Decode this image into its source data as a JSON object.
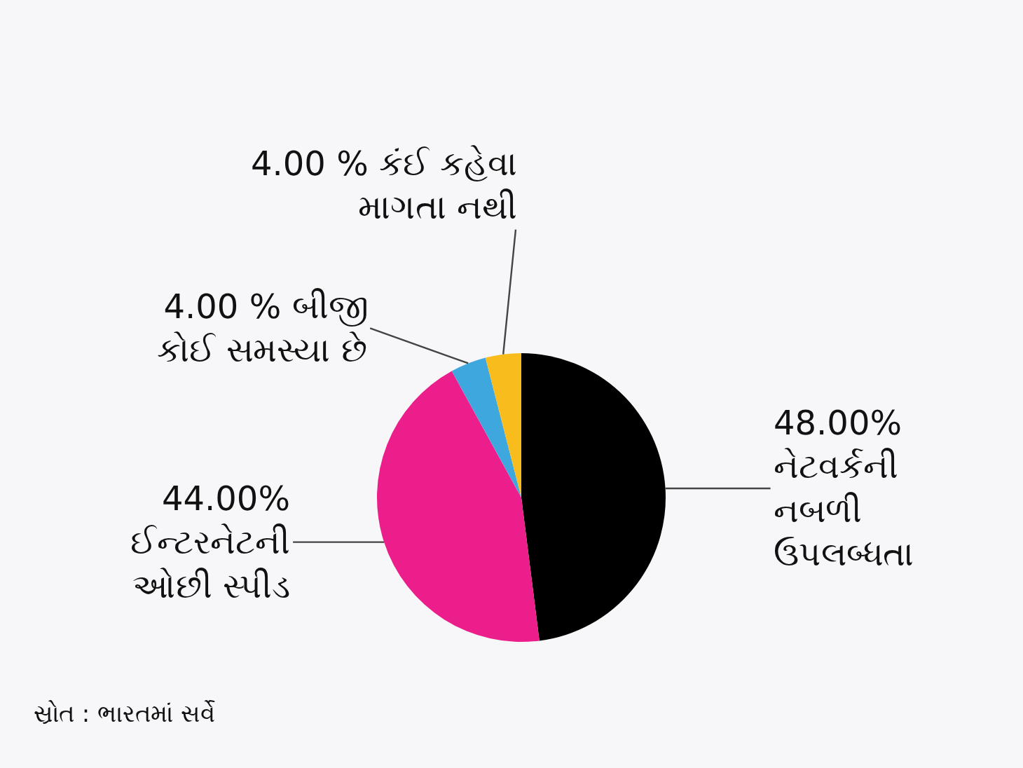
{
  "chart_data": {
    "type": "pie",
    "categories": [
      "નેટવર્કની\nનબળી\nઉપલબ્ધતા",
      "ઈન્ટરનેટની\nઓછી સ્પીડ",
      "બીજી\nકોઈ સમસ્યા છે",
      "કંઈ કહેવા\nમાગતા નથી"
    ],
    "values": [
      48,
      44,
      4,
      4
    ],
    "value_labels": [
      "48.00%",
      "44.00%",
      "4.00 %",
      "4.00 %"
    ],
    "colors": [
      "#000000",
      "#ec1e8c",
      "#3ea8de",
      "#f8bc1c"
    ],
    "annotations": [
      "સ્રોત : ભારતમાં સર્વે"
    ],
    "legend": false
  }
}
